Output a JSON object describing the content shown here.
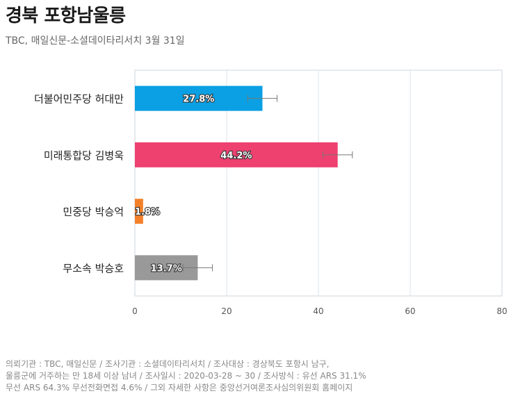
{
  "header": {
    "title": "경북 포항남울릉",
    "subtitle": "TBC, 매일신문-소셜데이타리서치 3월 31일"
  },
  "footnote": {
    "line1": "의뢰기관 : TBC, 매일신문 / 조사기관 : 소셜데이타리서치 / 조사대상 : 경상북도 포항시 남구,",
    "line2": "울릉군에 거주하는 만 18세 이상 남녀 / 조사일시 : 2020-03-28 ~ 30 / 조사방식 : 유선 ARS 31.1%",
    "line3": "무선 ARS 64.3% 무선전화면접 4.6% / 그외 자세한 사항은 중앙선거여론조사심의위원회 홈페이지"
  },
  "chart_data": {
    "type": "bar",
    "orientation": "horizontal",
    "categories": [
      "더불어민주당 허대만",
      "미래통합당 김병욱",
      "민중당 박승억",
      "무소속 박승호"
    ],
    "values": [
      27.8,
      44.2,
      1.8,
      13.7
    ],
    "value_labels": [
      "27.8%",
      "44.2%",
      "1.8%",
      "13.7%"
    ],
    "error_margin": 3.2,
    "colors": [
      "#0aa0e3",
      "#ee4170",
      "#f4812a",
      "#999999"
    ],
    "xlim": [
      0,
      80
    ],
    "xticks": [
      0,
      20,
      40,
      60,
      80
    ],
    "grid": true
  }
}
